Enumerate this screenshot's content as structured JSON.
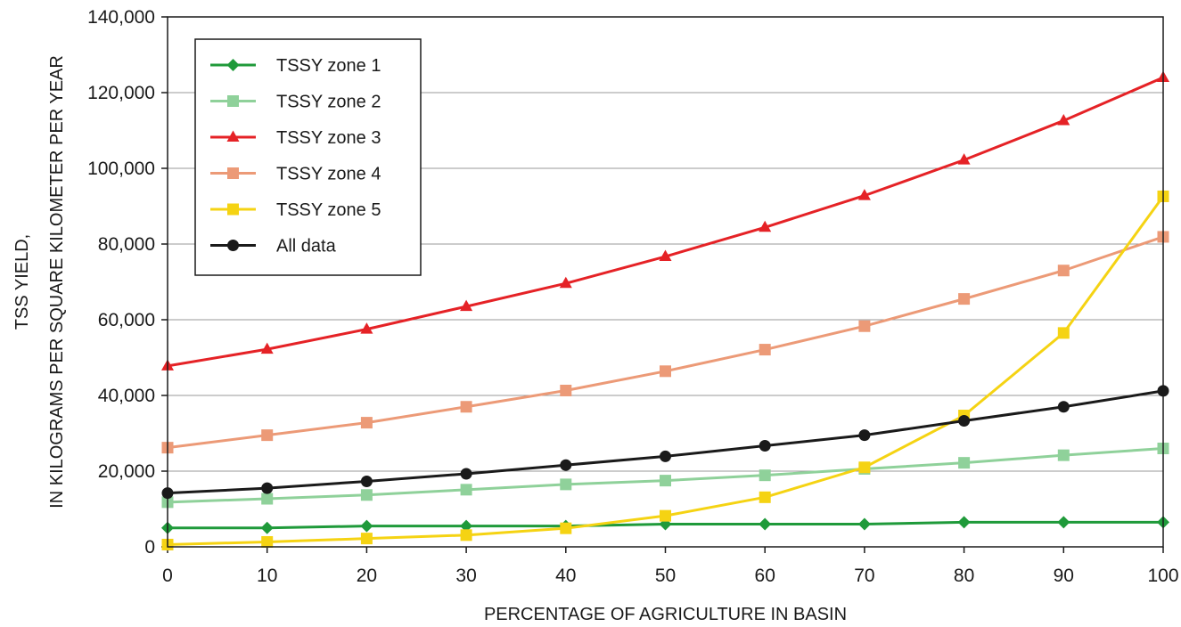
{
  "chart_data": {
    "type": "line",
    "xlabel": "PERCENTAGE OF AGRICULTURE IN BASIN",
    "ylabel_line1": "TSS YIELD,",
    "ylabel_line2": "IN KILOGRAMS PER SQUARE KILOMETER PER YEAR",
    "xlim": [
      0,
      100
    ],
    "ylim": [
      0,
      140000
    ],
    "x_ticks": [
      0,
      10,
      20,
      30,
      40,
      50,
      60,
      70,
      80,
      90,
      100
    ],
    "x_tick_labels": [
      "0",
      "10",
      "20",
      "30",
      "40",
      "50",
      "60",
      "70",
      "80",
      "90",
      "100"
    ],
    "y_ticks": [
      0,
      20000,
      40000,
      60000,
      80000,
      100000,
      120000,
      140000
    ],
    "y_tick_labels": [
      "0",
      "20,000",
      "40,000",
      "60,000",
      "80,000",
      "100,000",
      "120,000",
      "140,000"
    ],
    "grid": "horizontal",
    "legend_position": "top-left",
    "x": [
      0,
      10,
      20,
      30,
      40,
      50,
      60,
      70,
      80,
      90,
      100
    ],
    "series": [
      {
        "name": "TSSY zone 1",
        "color": "#1f9a3a",
        "marker": "diamond",
        "values": [
          5000,
          5000,
          5500,
          5500,
          5500,
          6000,
          6000,
          6000,
          6500,
          6500,
          6500
        ]
      },
      {
        "name": "TSSY zone 2",
        "color": "#8fd19a",
        "marker": "square",
        "values": [
          11800,
          12700,
          13700,
          15100,
          16500,
          17500,
          18900,
          20600,
          22200,
          24200,
          26000
        ]
      },
      {
        "name": "TSSY zone 3",
        "color": "#e52226",
        "marker": "triangle",
        "values": [
          47800,
          52200,
          57500,
          63500,
          69600,
          76700,
          84400,
          92800,
          102200,
          112600,
          124000
        ]
      },
      {
        "name": "TSSY zone 4",
        "color": "#ec9a77",
        "marker": "square",
        "values": [
          26200,
          29500,
          32800,
          37000,
          41300,
          46400,
          52100,
          58300,
          65500,
          73000,
          81900
        ]
      },
      {
        "name": "TSSY zone 5",
        "color": "#f5d313",
        "marker": "square",
        "values": [
          600,
          1300,
          2200,
          3100,
          4900,
          8200,
          13100,
          21000,
          34700,
          56500,
          92600
        ]
      },
      {
        "name": "All data",
        "color": "#1a1a1a",
        "marker": "circle",
        "values": [
          14200,
          15500,
          17300,
          19300,
          21600,
          23900,
          26700,
          29500,
          33300,
          37000,
          41200
        ]
      }
    ]
  }
}
